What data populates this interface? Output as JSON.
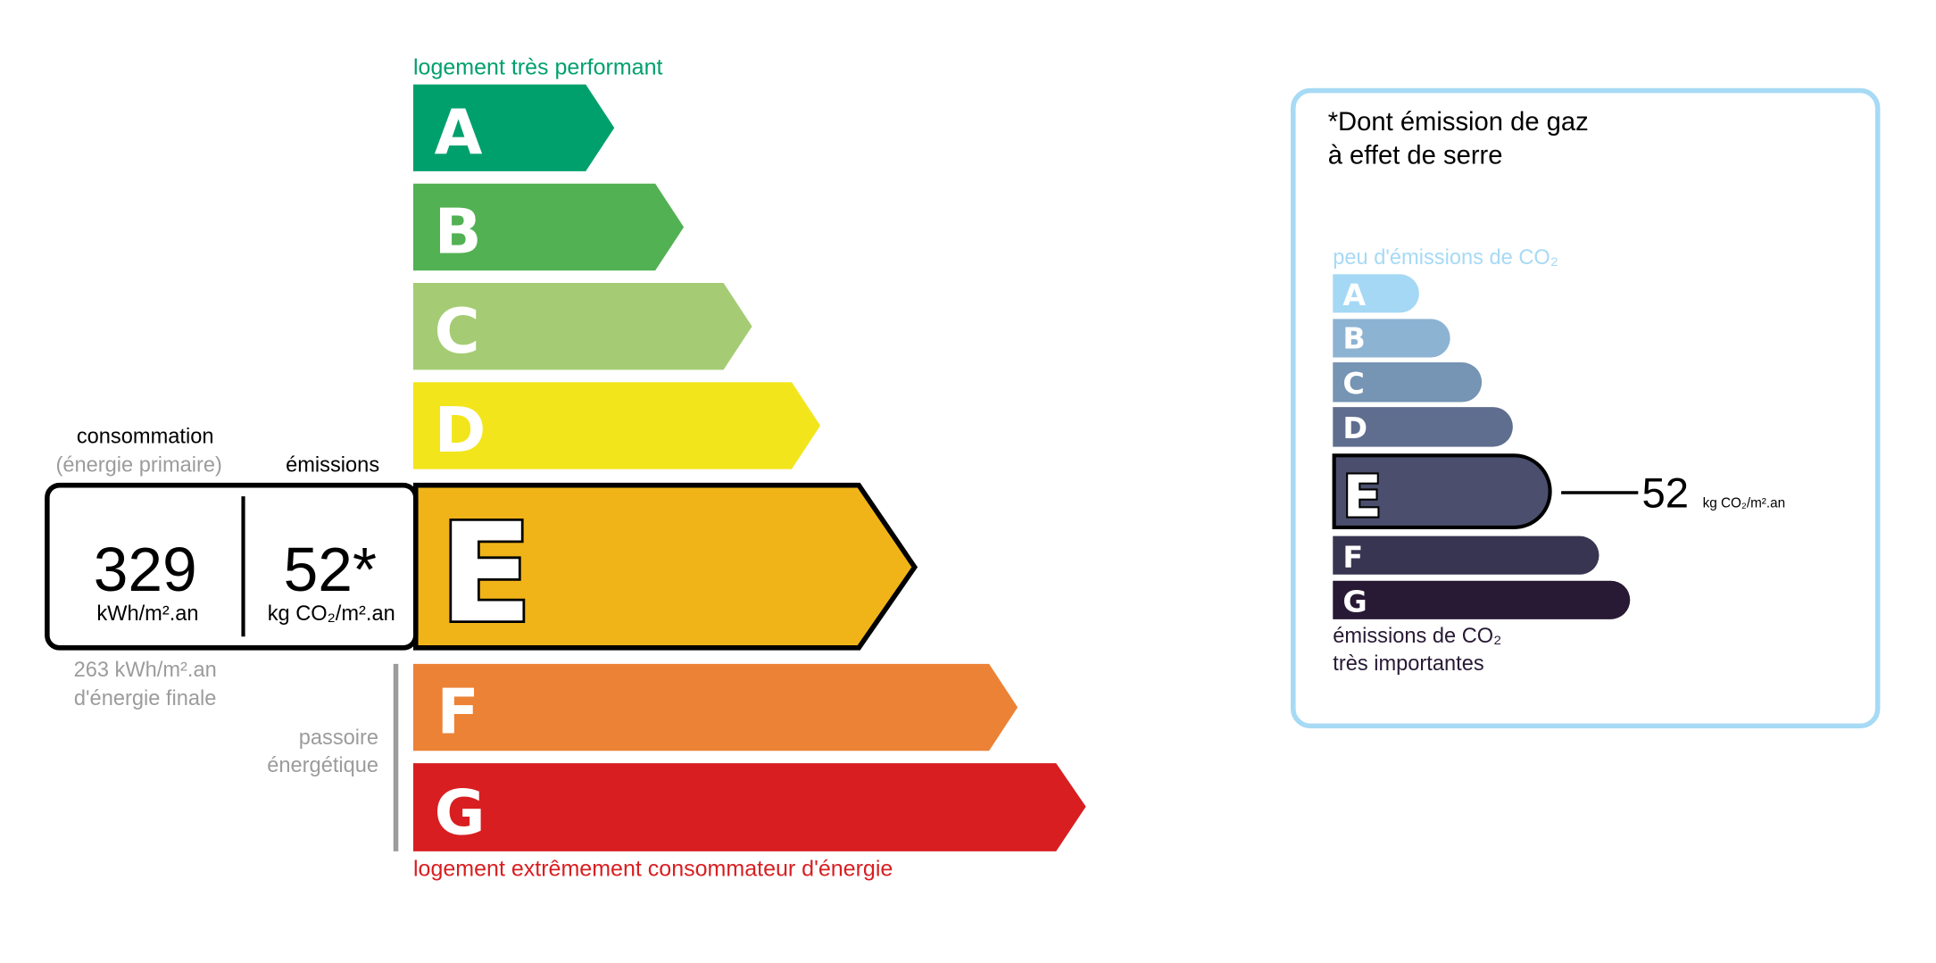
{
  "energy_label": {
    "top_label": "logement très performant",
    "bottom_label": "logement extrêmement consommateur d'énergie",
    "classes": [
      {
        "letter": "A",
        "color": "#00a06d"
      },
      {
        "letter": "B",
        "color": "#52b153"
      },
      {
        "letter": "C",
        "color": "#a5cc74"
      },
      {
        "letter": "D",
        "color": "#f2e51c"
      },
      {
        "letter": "E",
        "color": "#f0b419"
      },
      {
        "letter": "F",
        "color": "#ec8235"
      },
      {
        "letter": "G",
        "color": "#d81e21"
      }
    ],
    "current_class": "E",
    "consumption_heading": "consommation",
    "consumption_subheading": "(énergie primaire)",
    "emissions_heading": "émissions",
    "consumption_value": "329",
    "consumption_unit": "kWh/m².an",
    "emissions_value": "52*",
    "emissions_unit": "kg CO₂/m².an",
    "final_energy_line1": "263 kWh/m².an",
    "final_energy_line2": "d'énergie finale",
    "passoire_line1": "passoire",
    "passoire_line2": "énergétique"
  },
  "ghg_panel": {
    "title_line1": "*Dont émission de gaz",
    "title_line2": "à effet de serre",
    "top_label": "peu d'émissions de CO₂",
    "bottom_label_line1": "émissions de CO₂",
    "bottom_label_line2": "très importantes",
    "classes": [
      {
        "letter": "A",
        "color": "#a5d8f4"
      },
      {
        "letter": "B",
        "color": "#8db3d3"
      },
      {
        "letter": "C",
        "color": "#7694b3"
      },
      {
        "letter": "D",
        "color": "#5f6e8f"
      },
      {
        "letter": "E",
        "color": "#4b4f6d"
      },
      {
        "letter": "F",
        "color": "#383552"
      },
      {
        "letter": "G",
        "color": "#281a35"
      }
    ],
    "current_class": "E",
    "value": "52",
    "unit": "kg CO₂/m².an",
    "border_color": "#a6daf5"
  }
}
